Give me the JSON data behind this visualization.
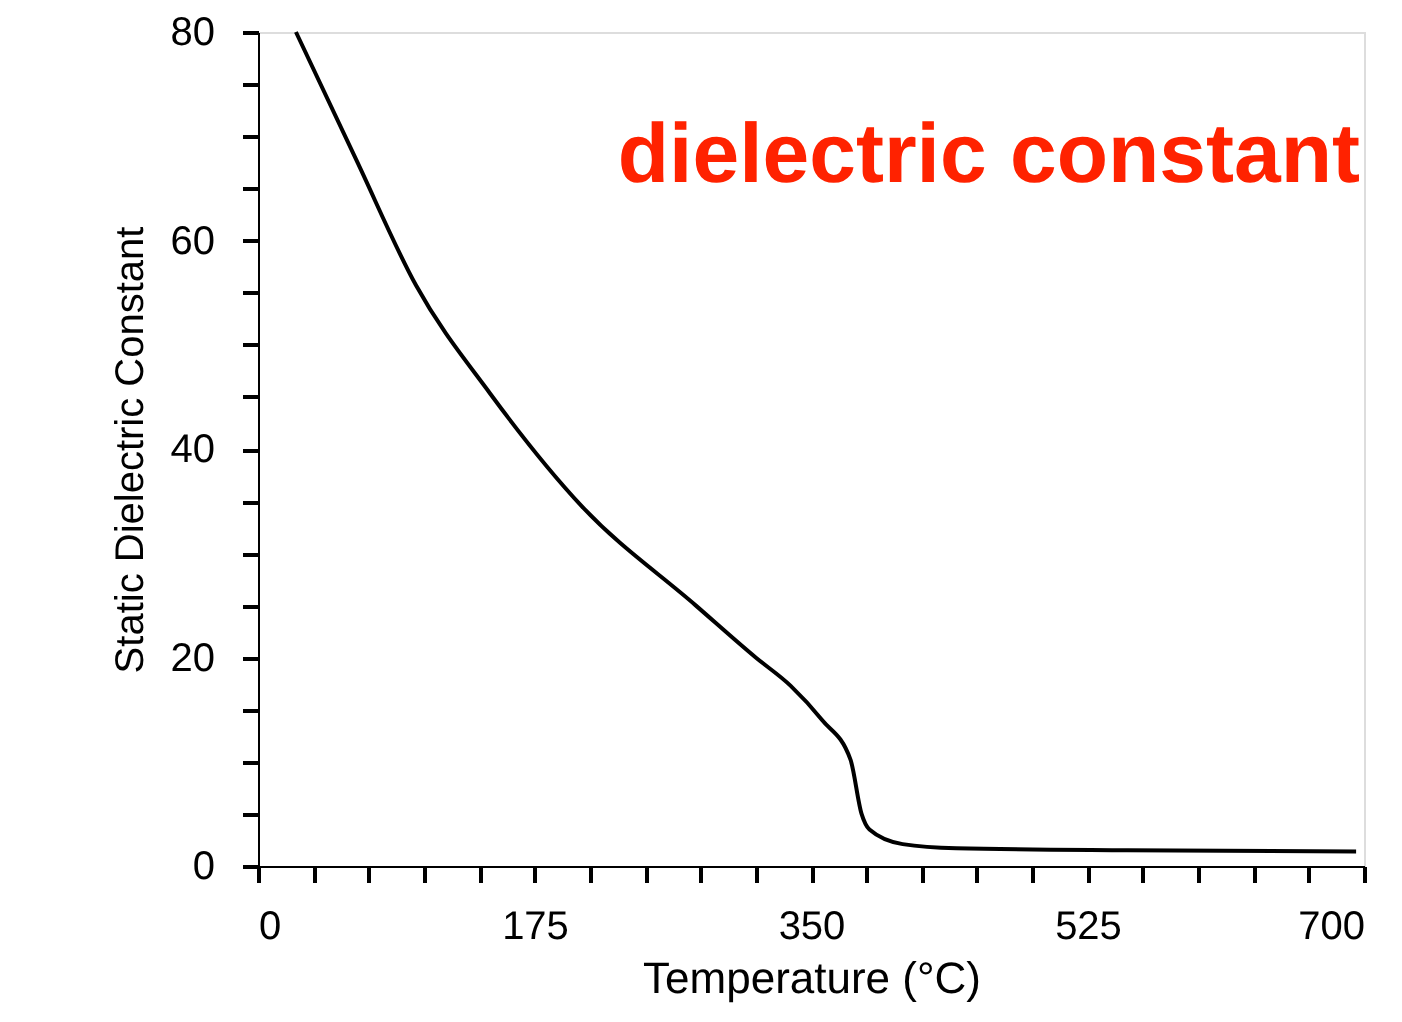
{
  "chart_data": {
    "type": "line",
    "xlabel": "Temperature (°C)",
    "ylabel": "Static Dielectric Constant",
    "annotations": [
      "dielectric constant"
    ],
    "x": [
      24,
      62,
      100,
      147,
      205,
      277,
      315,
      337,
      357,
      375,
      382,
      387,
      408,
      442,
      550,
      695
    ],
    "series": [
      {
        "color": "#000000",
        "values": [
          80,
          67.8,
          55.7,
          45.3,
          34.5,
          25,
          20,
          17.3,
          14,
          10.2,
          5,
          3.5,
          2.1,
          1.7,
          1.5,
          1.4
        ]
      }
    ],
    "xlim": [
      0,
      700
    ],
    "ylim": [
      0,
      80
    ],
    "xticks": [
      0,
      {
        "value": 35,
        "label": null
      },
      {
        "value": 70,
        "label": null
      },
      {
        "value": 105,
        "label": null
      },
      {
        "value": 140,
        "label": null
      },
      175,
      {
        "value": 210,
        "label": null
      },
      {
        "value": 245,
        "label": null
      },
      {
        "value": 280,
        "label": null
      },
      {
        "value": 315,
        "label": null
      },
      350,
      {
        "value": 385,
        "label": null
      },
      {
        "value": 420,
        "label": null
      },
      {
        "value": 455,
        "label": null
      },
      {
        "value": 490,
        "label": null
      },
      525,
      {
        "value": 560,
        "label": null
      },
      {
        "value": 595,
        "label": null
      },
      {
        "value": 630,
        "label": null
      },
      {
        "value": 665,
        "label": null
      },
      700
    ],
    "yticks": [
      0,
      {
        "value": 5,
        "label": null
      },
      {
        "value": 10,
        "label": null
      },
      {
        "value": 15,
        "label": null
      },
      20,
      {
        "value": 25,
        "label": null
      },
      {
        "value": 30,
        "label": null
      },
      {
        "value": 35,
        "label": null
      },
      40,
      {
        "value": 45,
        "label": null
      },
      {
        "value": 50,
        "label": null
      },
      {
        "value": 55,
        "label": null
      },
      60,
      {
        "value": 65,
        "label": null
      },
      {
        "value": 70,
        "label": null
      },
      {
        "value": 75,
        "label": null
      },
      80
    ],
    "grid": false,
    "marker": "none",
    "line_style": "solid"
  }
}
